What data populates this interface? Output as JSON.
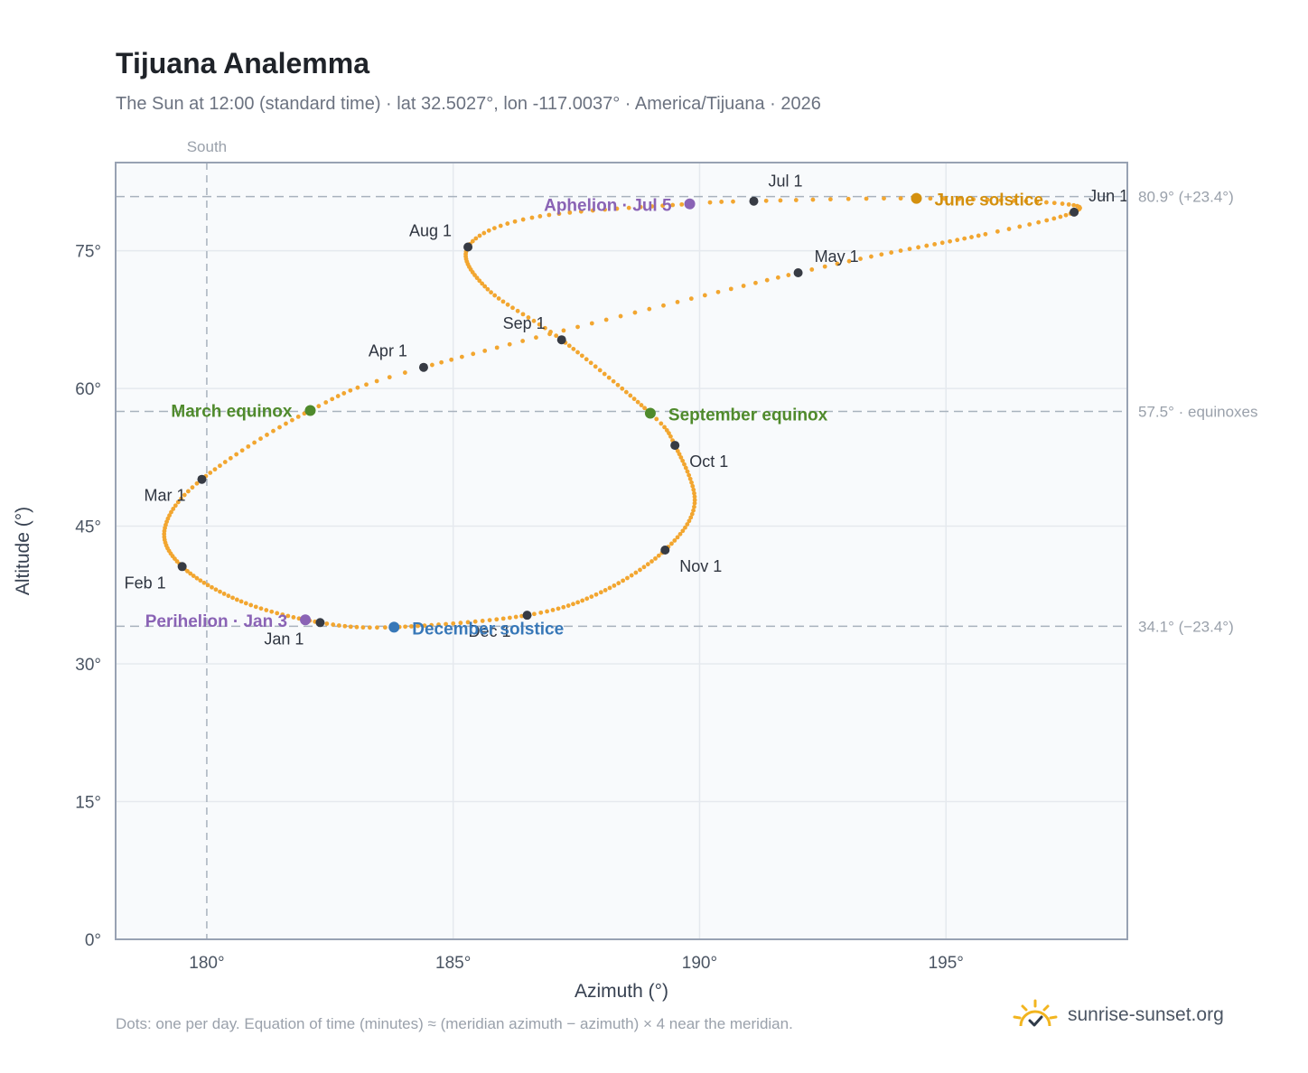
{
  "title": "Tijuana Analemma",
  "subtitle": "The Sun at 12:00 (standard time) · lat 32.5027°, lon -117.0037° · America/Tijuana · 2026",
  "footnote": "Dots: one per day. Equation of time (minutes) ≈ (meridian azimuth − azimuth) × 4 near the meridian.",
  "brand": {
    "text": "sunrise-sunset.org",
    "icon": "sun-logo-icon"
  },
  "colors": {
    "path": "#f2a630",
    "month": "#373b44",
    "equinox": "#4f8a2c",
    "june_solstice": "#d4900e",
    "december_solstice": "#3878b8",
    "aphelion_perihelion": "#8a63b5",
    "grid": "#e5e9ee",
    "plot_bg": "#f8fafc",
    "axis": "#98a2b3",
    "ref_line": "#a8b2bd"
  },
  "chart_data": {
    "type": "scatter",
    "xlabel": "Azimuth (°)",
    "ylabel": "Altitude (°)",
    "xlim": [
      178.15,
      198.68
    ],
    "ylim": [
      0,
      84.6
    ],
    "xticks": [
      180,
      185,
      190,
      195
    ],
    "yticks": [
      0,
      15,
      30,
      45,
      60,
      75
    ],
    "x_tick_labels": [
      "180°",
      "185°",
      "190°",
      "195°"
    ],
    "y_tick_labels": [
      "0°",
      "15°",
      "30°",
      "45°",
      "60°",
      "75°"
    ],
    "grid": true,
    "south_marker": {
      "azimuth": 180,
      "label": "South"
    },
    "reference_lines": [
      {
        "altitude": 80.9,
        "label": "80.9° (+23.4°)"
      },
      {
        "altitude": 57.5,
        "label": "57.5° · equinoxes"
      },
      {
        "altitude": 34.1,
        "label": "34.1° (−23.4°)"
      }
    ],
    "month_markers": [
      {
        "label": "Jan 1",
        "azimuth": 182.3,
        "altitude": 34.5
      },
      {
        "label": "Feb 1",
        "azimuth": 179.5,
        "altitude": 40.6
      },
      {
        "label": "Mar 1",
        "azimuth": 179.9,
        "altitude": 50.1
      },
      {
        "label": "Apr 1",
        "azimuth": 184.4,
        "altitude": 62.3
      },
      {
        "label": "May 1",
        "azimuth": 192.0,
        "altitude": 72.6
      },
      {
        "label": "Jun 1",
        "azimuth": 197.6,
        "altitude": 79.2
      },
      {
        "label": "Jul 1",
        "azimuth": 191.1,
        "altitude": 80.4
      },
      {
        "label": "Aug 1",
        "azimuth": 185.3,
        "altitude": 75.4
      },
      {
        "label": "Sep 1",
        "azimuth": 187.2,
        "altitude": 65.3
      },
      {
        "label": "Oct 1",
        "azimuth": 189.5,
        "altitude": 53.8
      },
      {
        "label": "Nov 1",
        "azimuth": 189.3,
        "altitude": 42.4
      },
      {
        "label": "Dec 1",
        "azimuth": 186.5,
        "altitude": 35.3
      }
    ],
    "events": [
      {
        "label": "March equinox",
        "azimuth": 182.1,
        "altitude": 57.6,
        "kind": "equinox"
      },
      {
        "label": "September equinox",
        "azimuth": 189.0,
        "altitude": 57.3,
        "kind": "equinox"
      },
      {
        "label": "June solstice",
        "azimuth": 194.4,
        "altitude": 80.7,
        "kind": "june_solstice"
      },
      {
        "label": "December solstice",
        "azimuth": 183.8,
        "altitude": 34.0,
        "kind": "december_solstice"
      },
      {
        "label": "Aphelion · Jul 5",
        "azimuth": 189.8,
        "altitude": 80.1,
        "kind": "aphelion_perihelion"
      },
      {
        "label": "Perihelion · Jan 3",
        "azimuth": 182.0,
        "altitude": 34.8,
        "kind": "aphelion_perihelion"
      }
    ],
    "path_anchors": [
      {
        "day": 0,
        "azimuth": 182.3,
        "altitude": 34.5
      },
      {
        "day": 15,
        "azimuth": 180.7,
        "altitude": 36.8
      },
      {
        "day": 31,
        "azimuth": 179.5,
        "altitude": 40.6
      },
      {
        "day": 45,
        "azimuth": 179.15,
        "altitude": 44.8
      },
      {
        "day": 59,
        "azimuth": 179.9,
        "altitude": 50.1
      },
      {
        "day": 78,
        "azimuth": 182.1,
        "altitude": 57.6
      },
      {
        "day": 90,
        "azimuth": 184.4,
        "altitude": 62.3
      },
      {
        "day": 120,
        "azimuth": 192.0,
        "altitude": 72.6
      },
      {
        "day": 140,
        "azimuth": 195.8,
        "altitude": 76.8
      },
      {
        "day": 151,
        "azimuth": 197.6,
        "altitude": 79.2
      },
      {
        "day": 160,
        "azimuth": 197.2,
        "altitude": 80.2
      },
      {
        "day": 171,
        "azimuth": 194.4,
        "altitude": 80.7
      },
      {
        "day": 181,
        "azimuth": 191.1,
        "altitude": 80.4
      },
      {
        "day": 185,
        "azimuth": 189.8,
        "altitude": 80.1
      },
      {
        "day": 200,
        "azimuth": 186.6,
        "altitude": 78.6
      },
      {
        "day": 212,
        "azimuth": 185.3,
        "altitude": 75.4
      },
      {
        "day": 228,
        "azimuth": 185.7,
        "altitude": 70.8
      },
      {
        "day": 243,
        "azimuth": 187.2,
        "altitude": 65.3
      },
      {
        "day": 265,
        "azimuth": 189.0,
        "altitude": 57.3
      },
      {
        "day": 273,
        "azimuth": 189.5,
        "altitude": 53.8
      },
      {
        "day": 290,
        "azimuth": 189.9,
        "altitude": 47.5
      },
      {
        "day": 304,
        "azimuth": 189.3,
        "altitude": 42.4
      },
      {
        "day": 320,
        "azimuth": 188.0,
        "altitude": 37.8
      },
      {
        "day": 334,
        "azimuth": 186.5,
        "altitude": 35.3
      },
      {
        "day": 354,
        "azimuth": 183.8,
        "altitude": 34.0
      },
      {
        "day": 365,
        "azimuth": 182.3,
        "altitude": 34.5
      }
    ]
  }
}
